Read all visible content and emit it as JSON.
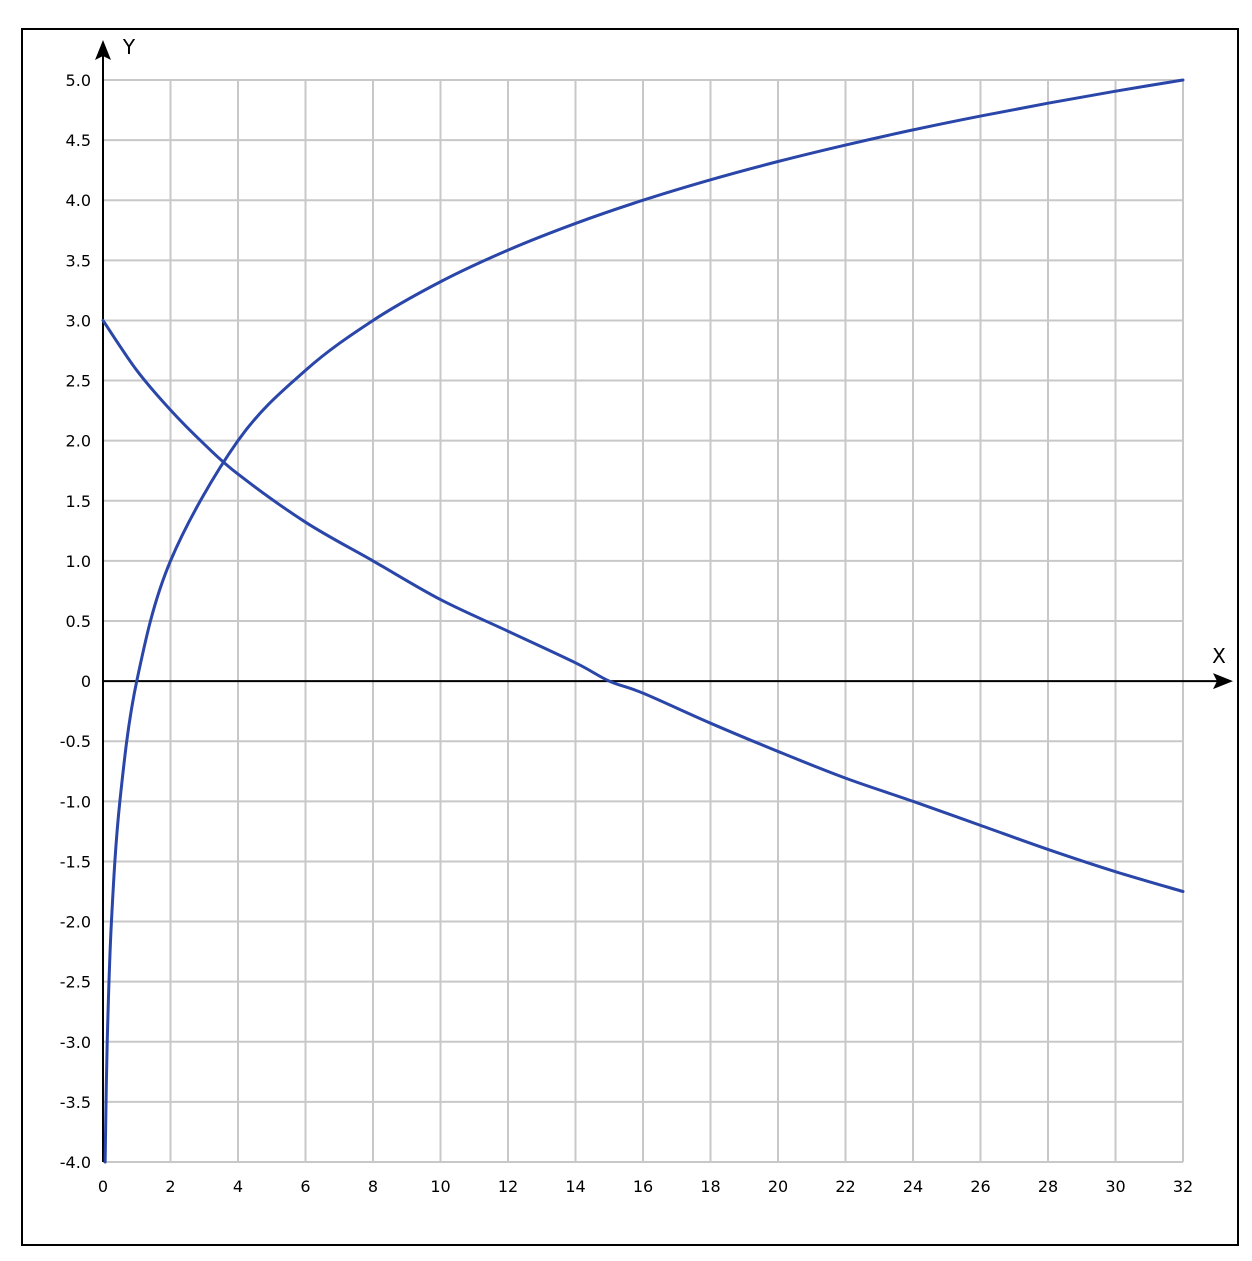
{
  "chart_data": {
    "type": "line",
    "title": "",
    "xlabel": "X",
    "ylabel": "Y",
    "xlim": [
      0,
      32
    ],
    "ylim": [
      -4.0,
      5.0
    ],
    "grid": true,
    "x_ticks": [
      "0",
      "2",
      "4",
      "6",
      "8",
      "10",
      "12",
      "14",
      "16",
      "18",
      "20",
      "22",
      "24",
      "26",
      "28",
      "30",
      "32"
    ],
    "y_ticks": [
      "5.0",
      "4.5",
      "4.0",
      "3.5",
      "3.0",
      "2.5",
      "2.0",
      "1.5",
      "1.0",
      "0.5",
      "0",
      "-0.5",
      "-1.0",
      "-1.5",
      "-2.0",
      "-2.5",
      "-3.0",
      "-3.5",
      "-4.0"
    ],
    "series": [
      {
        "color": "#2a46a8",
        "x": [
          0.0625,
          0.125,
          0.25,
          0.5,
          1,
          2,
          4,
          6,
          8,
          10,
          12,
          14,
          16,
          18,
          20,
          22,
          24,
          26,
          28,
          30,
          32
        ],
        "y": [
          -4.0,
          -3.0,
          -2.0,
          -1.0,
          0.0,
          1.0,
          2.0,
          2.585,
          3.0,
          3.322,
          3.585,
          3.807,
          4.0,
          4.17,
          4.322,
          4.459,
          4.585,
          4.7,
          4.807,
          4.907,
          5.0
        ]
      },
      {
        "color": "#2a46a8",
        "x": [
          0,
          1,
          2,
          3,
          4,
          6,
          8,
          10,
          12,
          14,
          15,
          16,
          18,
          20,
          22,
          24,
          26,
          28,
          30,
          32
        ],
        "y": [
          3.0,
          2.585,
          2.255,
          1.971,
          1.722,
          1.322,
          1.0,
          0.678,
          0.415,
          0.152,
          0.0,
          -0.1,
          -0.35,
          -0.585,
          -0.807,
          -1.0,
          -1.2,
          -1.4,
          -1.585,
          -1.75
        ]
      }
    ]
  }
}
